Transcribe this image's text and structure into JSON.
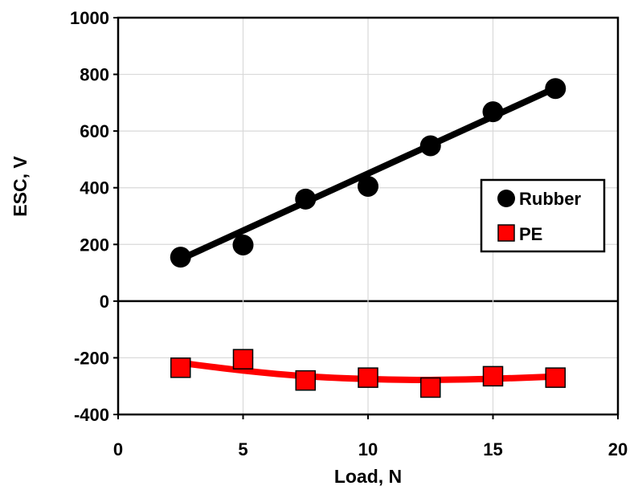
{
  "chart_data": {
    "type": "scatter",
    "xlabel": "Load, N",
    "ylabel": "ESC, V",
    "xlim": [
      0,
      20
    ],
    "ylim": [
      -400,
      1000
    ],
    "xticks": [
      "0",
      "5",
      "10",
      "15",
      "20"
    ],
    "yticks": [
      "-400",
      "-200",
      "0",
      "200",
      "400",
      "600",
      "800",
      "1000"
    ],
    "grid": true,
    "legend_position": "right",
    "series": [
      {
        "name": "Rubber",
        "marker": "circle",
        "color": "#000000",
        "x": [
          2.5,
          5,
          7.5,
          10,
          12.5,
          15,
          17.5
        ],
        "y": [
          155,
          198,
          360,
          405,
          548,
          668,
          750
        ],
        "trend": {
          "kind": "linear",
          "x": [
            2.5,
            17.5
          ],
          "y": [
            148,
            752
          ]
        }
      },
      {
        "name": "PE",
        "marker": "square",
        "color": "#ff0000",
        "x": [
          2.5,
          5,
          7.5,
          10,
          12.5,
          15,
          17.5
        ],
        "y": [
          -235,
          -205,
          -280,
          -270,
          -305,
          -265,
          -270
        ],
        "trend": {
          "kind": "smooth",
          "x": [
            2.5,
            5,
            7.5,
            10,
            12.5,
            15,
            17.5
          ],
          "y": [
            -218,
            -245,
            -265,
            -275,
            -278,
            -274,
            -266
          ]
        }
      }
    ]
  }
}
